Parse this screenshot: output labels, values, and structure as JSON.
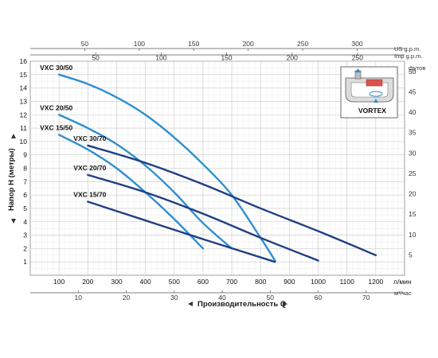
{
  "chart_data": {
    "type": "line",
    "xlabel": "Производительность  Q",
    "ylabel": "Напор H (метры)",
    "y2label": "футов",
    "xunit_bottom": "л/мин",
    "xunit_m3": "м³/час",
    "xunit_us": "US g.p.m.",
    "xunit_imp": "Imp g.p.m.",
    "xlim": [
      0,
      1300
    ],
    "ylim": [
      0,
      16
    ],
    "grid": true,
    "x_ticks": [
      100,
      200,
      300,
      400,
      500,
      600,
      700,
      800,
      900,
      1000,
      1100,
      1200
    ],
    "y_ticks": [
      1,
      2,
      3,
      4,
      5,
      6,
      7,
      8,
      9,
      10,
      11,
      12,
      13,
      14,
      15,
      16
    ],
    "y_ticks_left": [
      "1",
      "2",
      "3",
      "4",
      "5",
      "6",
      "7",
      "8",
      "9",
      "10",
      "11",
      "12",
      "13",
      "14",
      "15",
      "16"
    ],
    "y2_ticks": [
      5,
      10,
      15,
      20,
      25,
      30,
      35,
      40,
      45,
      50
    ],
    "m3_ticks": [
      10,
      20,
      30,
      40,
      50,
      60,
      70
    ],
    "us_ticks": [
      50,
      100,
      150,
      200,
      250,
      300
    ],
    "imp_ticks": [
      50,
      100,
      150,
      200,
      250
    ],
    "series": [
      {
        "name": "VXC 30/50",
        "color": "#2f8fd0",
        "x": [
          100,
          200,
          300,
          400,
          500,
          600,
          700,
          800,
          850
        ],
        "y": [
          15.0,
          14.3,
          13.3,
          12.0,
          10.3,
          8.3,
          6.0,
          2.8,
          1.1
        ]
      },
      {
        "name": "VXC 20/50",
        "color": "#2f8fd0",
        "x": [
          100,
          200,
          300,
          400,
          500,
          600,
          700
        ],
        "y": [
          12.0,
          11.0,
          9.8,
          8.2,
          6.2,
          3.9,
          2.0
        ]
      },
      {
        "name": "VXC 15/50",
        "color": "#2f8fd0",
        "x": [
          100,
          200,
          300,
          400,
          500,
          600
        ],
        "y": [
          10.5,
          9.4,
          8.0,
          6.2,
          4.2,
          2.0
        ]
      },
      {
        "name": "VXC 30/70",
        "color": "#1f3f84",
        "x": [
          200,
          400,
          600,
          800,
          1000,
          1200
        ],
        "y": [
          9.7,
          8.4,
          6.8,
          5.0,
          3.3,
          1.5
        ]
      },
      {
        "name": "VXC 20/70",
        "color": "#1f3f84",
        "x": [
          200,
          400,
          600,
          800,
          1000
        ],
        "y": [
          7.5,
          6.2,
          4.6,
          2.8,
          1.1
        ]
      },
      {
        "name": "VXC 15/70",
        "color": "#1f3f84",
        "x": [
          200,
          400,
          600,
          850
        ],
        "y": [
          5.5,
          4.1,
          2.7,
          1.0
        ]
      }
    ]
  },
  "inset": {
    "label": "VORTEX"
  }
}
